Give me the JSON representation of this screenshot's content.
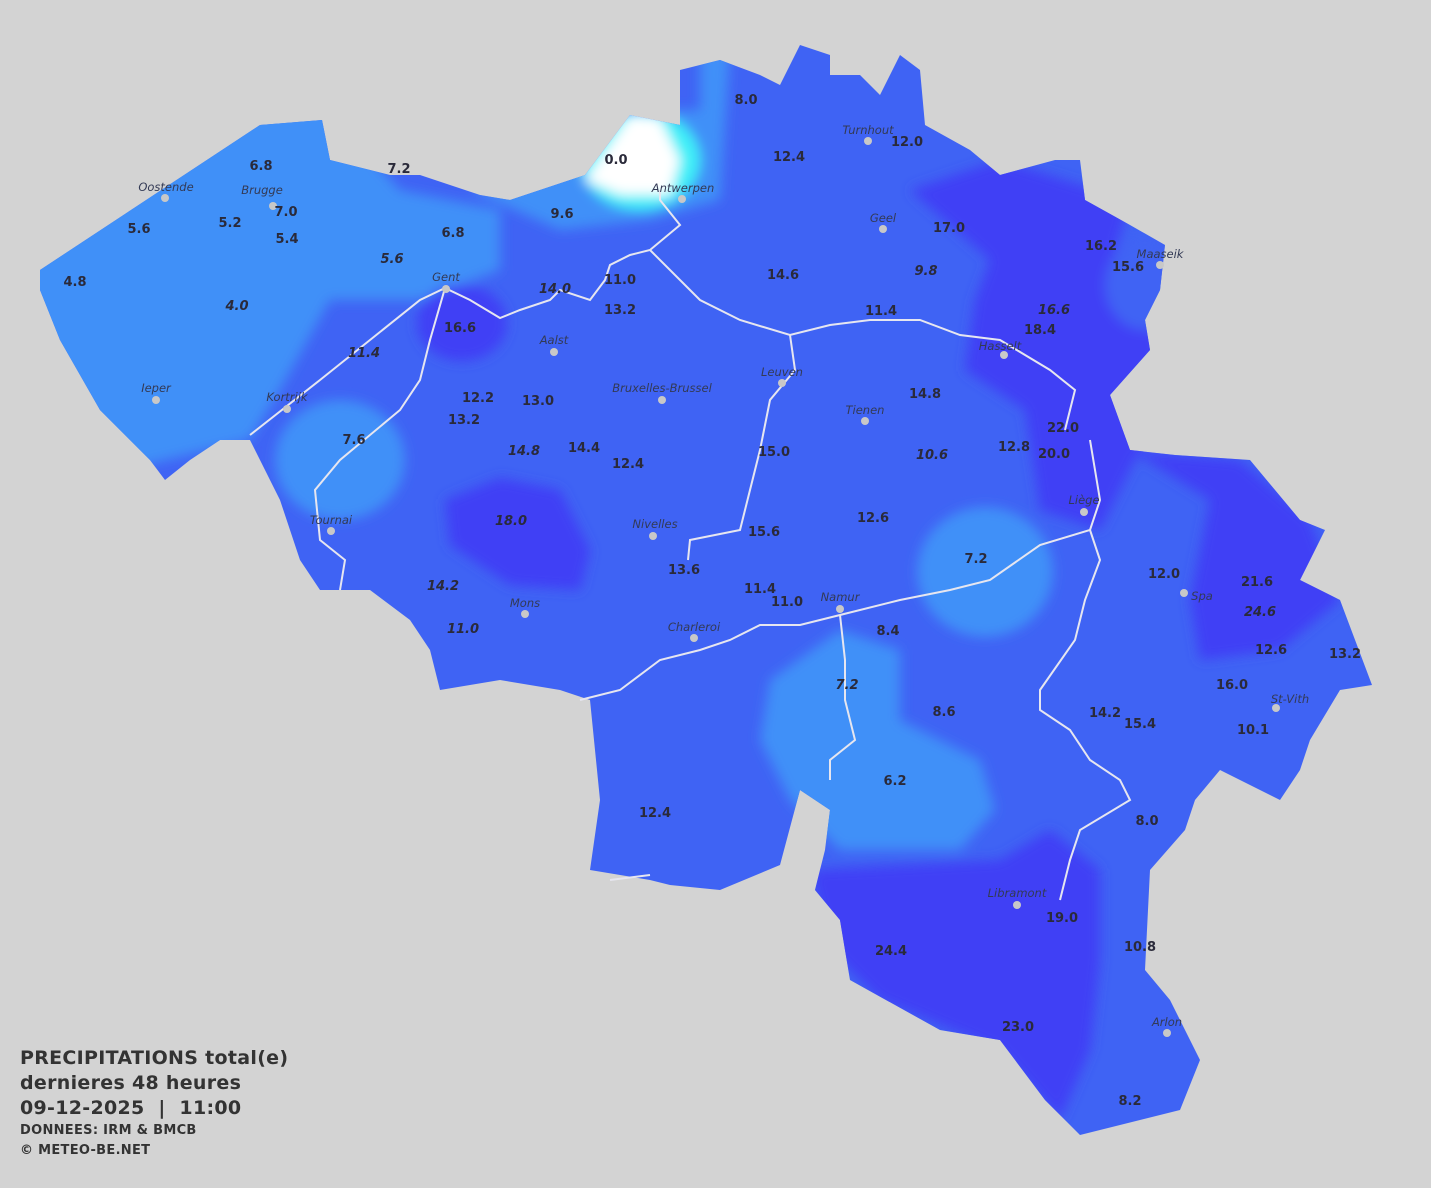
{
  "legend": {
    "title": "PRECIPITATIONS total(e)",
    "period": "dernieres 48 heures",
    "datetime": "09-12-2025  |  11:00",
    "source": "DONNEES: IRM & BMCB",
    "copyright": "© METEO-BE.NET"
  },
  "colors": {
    "background": "#d3d3d3",
    "low": "#3f90f8",
    "medium": "#3f63f4",
    "high": "#3f3ff5",
    "zero": "#ffffff",
    "river": "#e6e6f0",
    "text": "#2a2a3a"
  },
  "cities": [
    "Oostende",
    "Brugge",
    "Gent",
    "Antwerpen",
    "Turnhout",
    "Geel",
    "Maaseik",
    "Aalst",
    "Ieper",
    "Kortrijk",
    "Bruxelles-Brussel",
    "Leuven",
    "Tienen",
    "Hasselt",
    "Tournai",
    "Nivelles",
    "Liège",
    "Mons",
    "Charleroi",
    "Namur",
    "Spa",
    "St-Vith",
    "Libramont",
    "Arlon"
  ],
  "stations": [
    {
      "v": "8.0",
      "i": false
    },
    {
      "v": "12.4",
      "i": false
    },
    {
      "v": "12.0",
      "i": false
    },
    {
      "v": "0.0",
      "i": false
    },
    {
      "v": "6.8",
      "i": false
    },
    {
      "v": "7.2",
      "i": false
    },
    {
      "v": "7.0",
      "i": false
    },
    {
      "v": "5.6",
      "i": false
    },
    {
      "v": "5.2",
      "i": false
    },
    {
      "v": "5.4",
      "i": false
    },
    {
      "v": "6.8",
      "i": false
    },
    {
      "v": "9.6",
      "i": false
    },
    {
      "v": "4.8",
      "i": false
    },
    {
      "v": "4.0",
      "i": true
    },
    {
      "v": "5.6",
      "i": true
    },
    {
      "v": "17.0",
      "i": false
    },
    {
      "v": "16.2",
      "i": false
    },
    {
      "v": "15.6",
      "i": false
    },
    {
      "v": "14.6",
      "i": false
    },
    {
      "v": "9.8",
      "i": true
    },
    {
      "v": "11.0",
      "i": false
    },
    {
      "v": "14.0",
      "i": true
    },
    {
      "v": "13.2",
      "i": false
    },
    {
      "v": "16.6",
      "i": false
    },
    {
      "v": "11.4",
      "i": true
    },
    {
      "v": "11.4",
      "i": false
    },
    {
      "v": "16.6",
      "i": true
    },
    {
      "v": "18.4",
      "i": false
    },
    {
      "v": "12.2",
      "i": false
    },
    {
      "v": "13.0",
      "i": false
    },
    {
      "v": "13.2",
      "i": false
    },
    {
      "v": "14.8",
      "i": false
    },
    {
      "v": "7.6",
      "i": false
    },
    {
      "v": "14.8",
      "i": true
    },
    {
      "v": "14.4",
      "i": false
    },
    {
      "v": "12.4",
      "i": false
    },
    {
      "v": "15.0",
      "i": false
    },
    {
      "v": "10.6",
      "i": true
    },
    {
      "v": "12.8",
      "i": false
    },
    {
      "v": "22.0",
      "i": false
    },
    {
      "v": "20.0",
      "i": false
    },
    {
      "v": "18.0",
      "i": true
    },
    {
      "v": "15.6",
      "i": false
    },
    {
      "v": "12.6",
      "i": false
    },
    {
      "v": "7.2",
      "i": false
    },
    {
      "v": "13.6",
      "i": false
    },
    {
      "v": "14.2",
      "i": true
    },
    {
      "v": "11.4",
      "i": false
    },
    {
      "v": "11.0",
      "i": false
    },
    {
      "v": "11.0",
      "i": true
    },
    {
      "v": "8.4",
      "i": false
    },
    {
      "v": "12.0",
      "i": false
    },
    {
      "v": "21.6",
      "i": false
    },
    {
      "v": "24.6",
      "i": true
    },
    {
      "v": "12.6",
      "i": false
    },
    {
      "v": "13.2",
      "i": false
    },
    {
      "v": "16.0",
      "i": false
    },
    {
      "v": "7.2",
      "i": true
    },
    {
      "v": "8.6",
      "i": false
    },
    {
      "v": "14.2",
      "i": false
    },
    {
      "v": "15.4",
      "i": false
    },
    {
      "v": "10.1",
      "i": false
    },
    {
      "v": "6.2",
      "i": false
    },
    {
      "v": "12.4",
      "i": false
    },
    {
      "v": "8.0",
      "i": false
    },
    {
      "v": "19.0",
      "i": false
    },
    {
      "v": "24.4",
      "i": false
    },
    {
      "v": "10.8",
      "i": false
    },
    {
      "v": "23.0",
      "i": false
    },
    {
      "v": "8.2",
      "i": false
    }
  ]
}
